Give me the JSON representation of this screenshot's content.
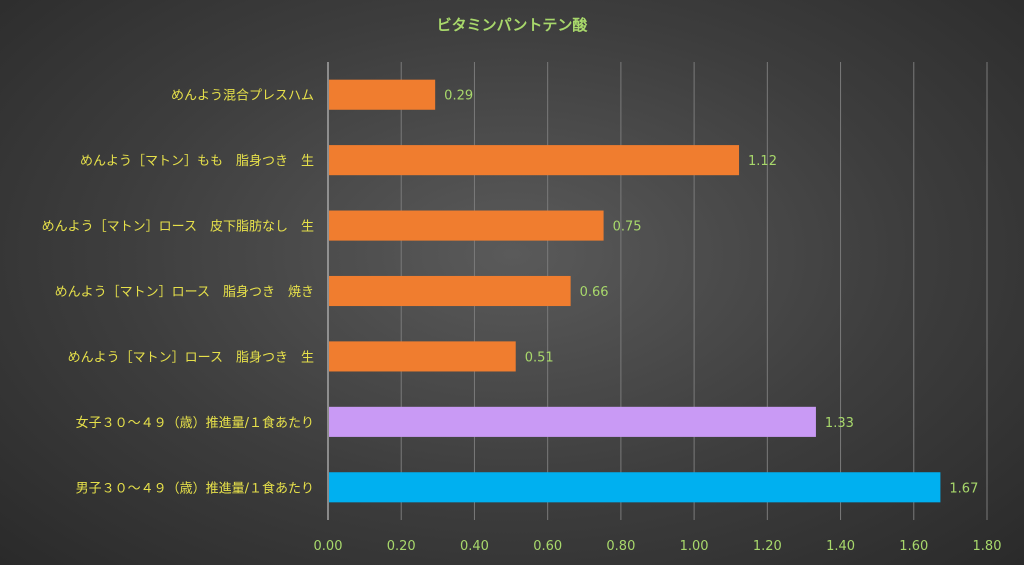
{
  "chart_data": {
    "type": "bar",
    "orientation": "horizontal",
    "title": "ビタミンパントテン酸",
    "xlim": [
      0,
      1.8
    ],
    "x_ticks": [
      "0.00",
      "0.20",
      "0.40",
      "0.60",
      "0.80",
      "1.00",
      "1.20",
      "1.40",
      "1.60",
      "1.80"
    ],
    "grid": true,
    "categories": [
      "めんよう混合プレスハム",
      "めんよう［マトン］もも　脂身つき　生",
      "めんよう［マトン］ロース　皮下脂肪なし　生",
      "めんよう［マトン］ロース　脂身つき　焼き",
      "めんよう［マトン］ロース　脂身つき　生",
      "女子３０～４９（歳）推進量/１食あたり",
      "男子３０～４９（歳）推進量/１食あたり"
    ],
    "values": [
      0.29,
      1.12,
      0.75,
      0.66,
      0.51,
      1.33,
      1.67
    ],
    "value_labels": [
      "0.29",
      "1.12",
      "0.75",
      "0.66",
      "0.51",
      "1.33",
      "1.67"
    ],
    "colors": [
      "#f07d2f",
      "#f07d2f",
      "#f07d2f",
      "#f07d2f",
      "#f07d2f",
      "#c99af5",
      "#00b0f0"
    ]
  }
}
